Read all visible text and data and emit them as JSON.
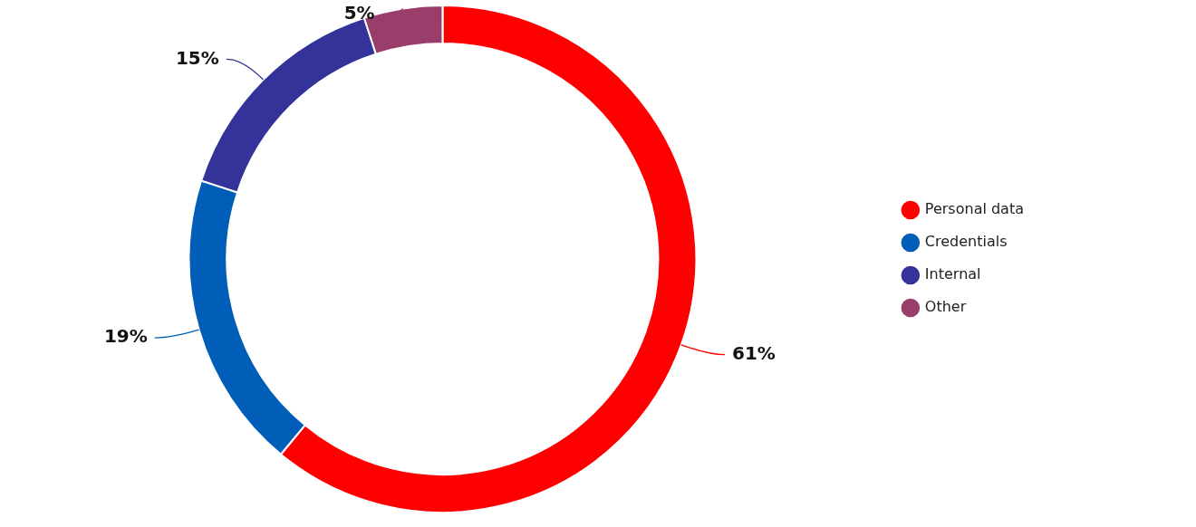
{
  "chart_data": {
    "type": "donut",
    "categories": [
      "Personal data",
      "Credentials",
      "Internal",
      "Other"
    ],
    "values": [
      61,
      19,
      15,
      5
    ],
    "colors": [
      "#ff0000",
      "#005eb8",
      "#333399",
      "#993d6b"
    ],
    "value_labels": [
      "61%",
      "19%",
      "15%",
      "5%"
    ],
    "legend": "right"
  }
}
